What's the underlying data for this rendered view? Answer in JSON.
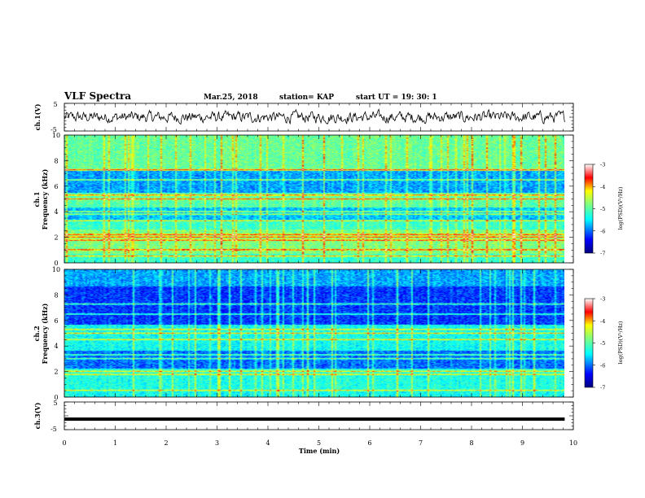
{
  "header": {
    "title": "VLF Spectra",
    "date": "Mar.25, 2018",
    "station": "station= KAP",
    "start": "start  UT =   19: 30: 1"
  },
  "chart_data": [
    {
      "type": "line",
      "panel": "ch1-waveform",
      "ylabel": "ch.1(V)",
      "ylim": [
        -5,
        5
      ],
      "yticks": [
        "5",
        "-5"
      ],
      "x_extent_min": [
        0,
        9.83
      ],
      "description_level": "noisy signal fluctuating roughly between -2 and +2 V"
    },
    {
      "type": "heatmap",
      "panel": "ch1-spectrogram",
      "ylabel_line1": "ch.1",
      "ylabel_line2": "Frequency (kHz)",
      "ylim": [
        0,
        10
      ],
      "yticks": [
        "0",
        "2",
        "4",
        "6",
        "8",
        "10"
      ],
      "xlim": [
        0,
        10
      ],
      "colorbar": {
        "label": "log(PSD)(V²/Hz)",
        "range": [
          -7,
          -3
        ],
        "ticks": [
          "-3",
          "-4",
          "-5",
          "-6",
          "-7"
        ],
        "colors": [
          "#00007f",
          "#0000ff",
          "#00ffff",
          "#80ff80",
          "#ffff00",
          "#ff0000",
          "#ffffff"
        ]
      },
      "bands_khz": [
        0.5,
        1.0,
        1.75,
        2.0,
        2.2,
        3.3,
        3.8,
        4.0,
        5.0,
        5.3,
        6.5,
        7.3
      ]
    },
    {
      "type": "heatmap",
      "panel": "ch2-spectrogram",
      "ylabel_line1": "ch.2",
      "ylabel_line2": "Frequency (kHz)",
      "ylim": [
        0,
        10
      ],
      "yticks": [
        "0",
        "2",
        "4",
        "6",
        "8",
        "10"
      ],
      "xlim": [
        0,
        10
      ],
      "colorbar": {
        "label": "log(PSD)(V²/Hz)",
        "range": [
          -7,
          -3
        ],
        "ticks": [
          "-3",
          "-4",
          "-5",
          "-6",
          "-7"
        ]
      },
      "bands_khz": [
        0.5,
        1.75,
        2.0,
        3.0,
        3.3,
        4.5,
        5.0,
        5.3,
        6.5,
        7.3
      ]
    },
    {
      "type": "line",
      "panel": "ch3-waveform",
      "ylabel": "ch.3(V)",
      "ylim": [
        -5,
        5
      ],
      "yticks": [
        "5",
        "-5"
      ],
      "constant_value": -1.2,
      "x_extent_min": [
        0,
        9.83
      ]
    }
  ],
  "x_axis": {
    "label": "Time (min)",
    "range": [
      0,
      10
    ],
    "ticks": [
      "0",
      "1",
      "2",
      "3",
      "4",
      "5",
      "6",
      "7",
      "8",
      "9",
      "10"
    ]
  }
}
